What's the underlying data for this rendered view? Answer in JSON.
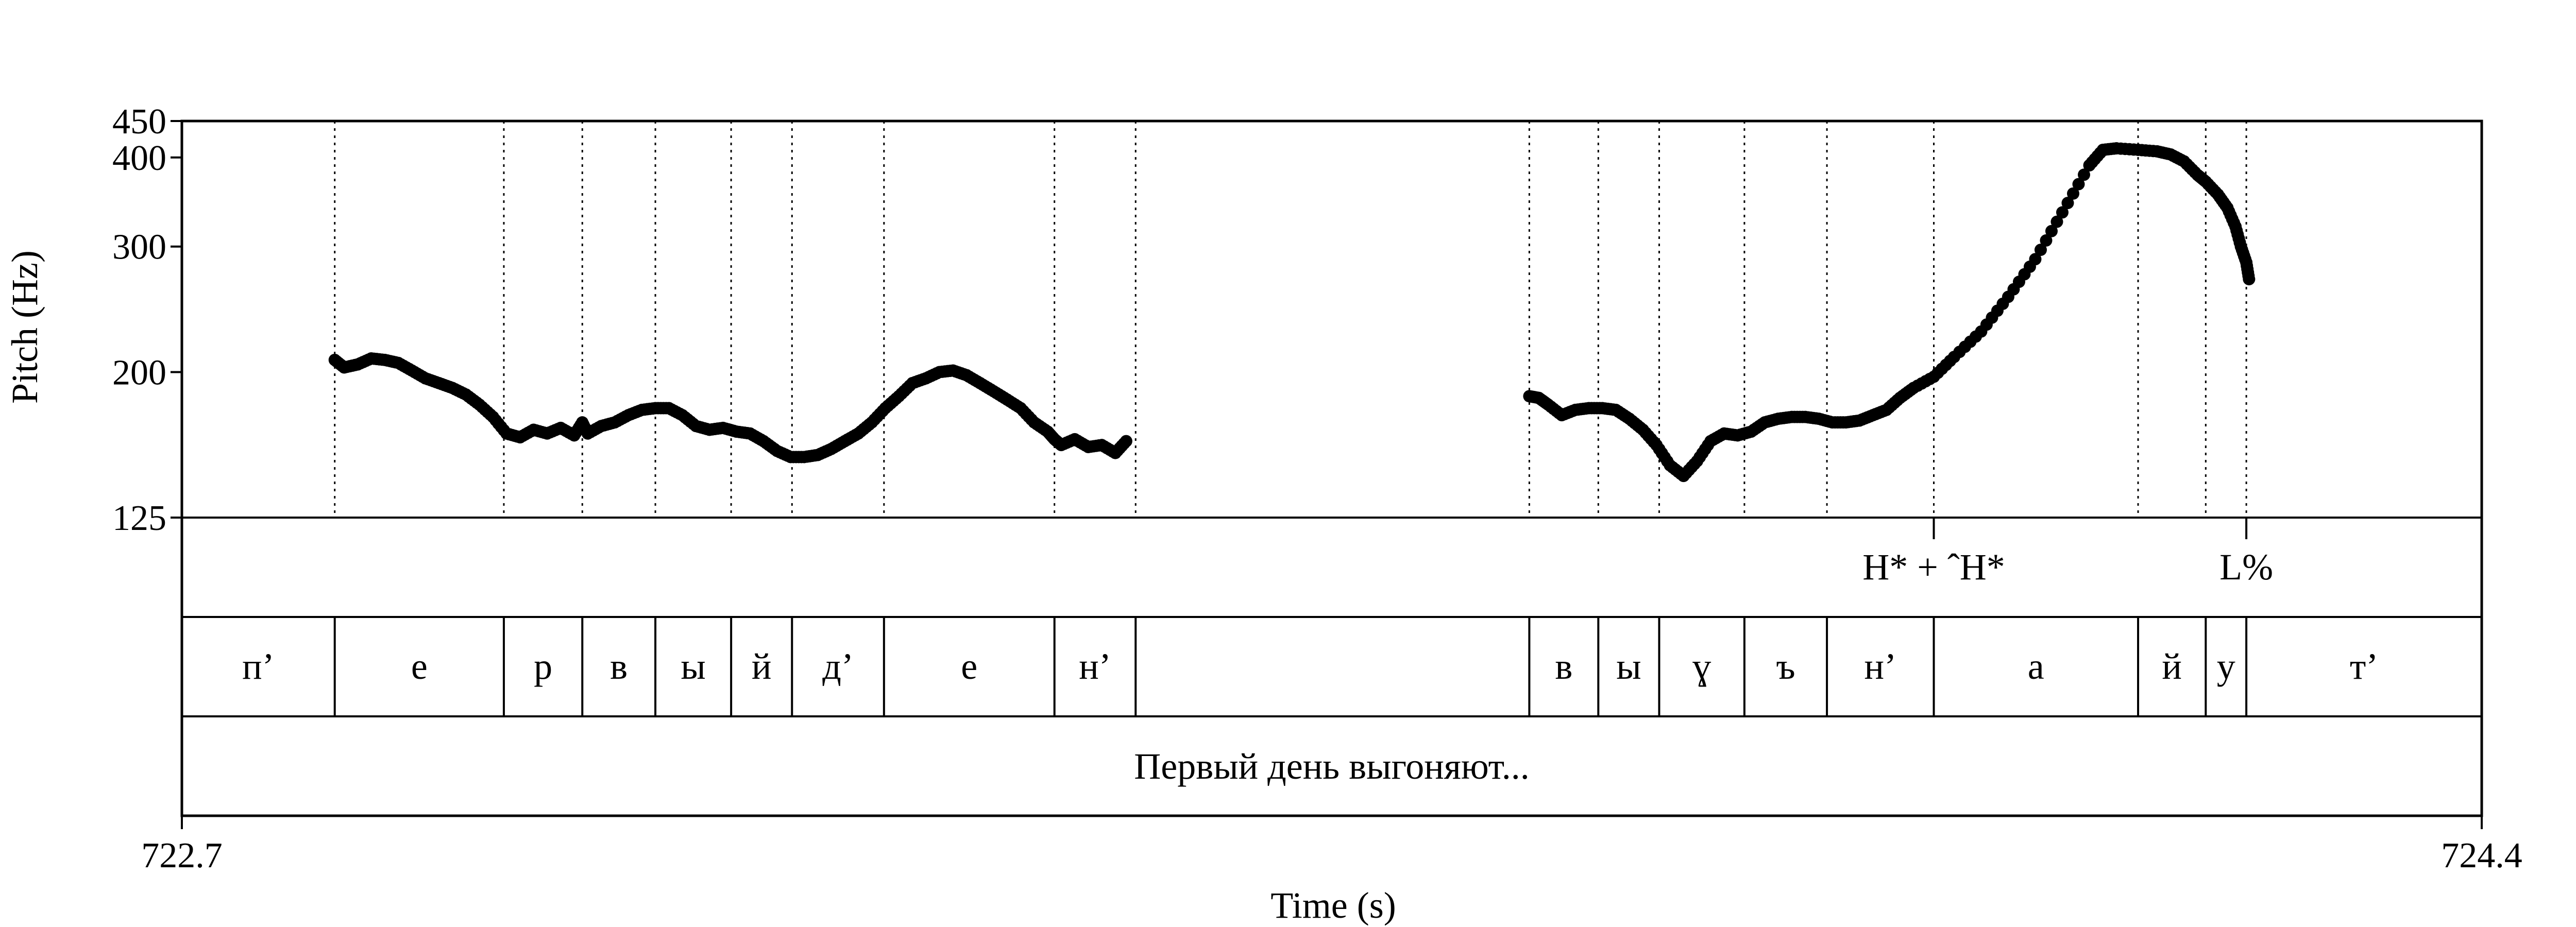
{
  "chart_data": {
    "type": "line",
    "xlabel": "Time (s)",
    "ylabel": "Pitch (Hz)",
    "xlim": [
      722.7,
      724.4
    ],
    "ylim": [
      125,
      450
    ],
    "y_scale": "log",
    "x_ticks": [
      "722.7",
      "724.4"
    ],
    "y_ticks": [
      {
        "value": 450,
        "label": "450"
      },
      {
        "value": 400,
        "label": "400"
      },
      {
        "value": 300,
        "label": "300"
      },
      {
        "value": 200,
        "label": "200"
      },
      {
        "value": 125,
        "label": "125"
      }
    ],
    "boundaries": [
      722.813,
      722.938,
      722.996,
      723.05,
      723.106,
      723.151,
      723.219,
      723.345,
      723.405,
      723.696,
      723.747,
      723.792,
      723.855,
      723.916,
      723.995,
      724.146,
      724.196,
      724.226
    ],
    "series": [
      {
        "points": [
          [
            722.813,
            208
          ],
          [
            722.82,
            203
          ],
          [
            722.83,
            205
          ],
          [
            722.84,
            209
          ],
          [
            722.85,
            208
          ],
          [
            722.86,
            206
          ],
          [
            722.87,
            201
          ],
          [
            722.88,
            196
          ],
          [
            722.89,
            193
          ],
          [
            722.9,
            190
          ],
          [
            722.91,
            186
          ],
          [
            722.92,
            180
          ],
          [
            722.93,
            173
          ],
          [
            722.94,
            164
          ],
          [
            722.95,
            162
          ],
          [
            722.96,
            166
          ],
          [
            722.97,
            164
          ],
          [
            722.98,
            167
          ],
          [
            722.99,
            163
          ],
          [
            722.996,
            170
          ],
          [
            723.0,
            164
          ],
          [
            723.01,
            168
          ],
          [
            723.02,
            170
          ],
          [
            723.03,
            174
          ],
          [
            723.04,
            177
          ],
          [
            723.05,
            178
          ],
          [
            723.06,
            178
          ],
          [
            723.07,
            174
          ],
          [
            723.08,
            168
          ],
          [
            723.09,
            166
          ],
          [
            723.1,
            167
          ],
          [
            723.11,
            165
          ],
          [
            723.12,
            164
          ],
          [
            723.13,
            160
          ],
          [
            723.14,
            155
          ],
          [
            723.15,
            152
          ],
          [
            723.16,
            152
          ],
          [
            723.17,
            153
          ],
          [
            723.18,
            156
          ],
          [
            723.19,
            160
          ],
          [
            723.2,
            164
          ],
          [
            723.21,
            170
          ],
          [
            723.22,
            178
          ],
          [
            723.23,
            185
          ],
          [
            723.24,
            193
          ],
          [
            723.25,
            196
          ],
          [
            723.26,
            200
          ],
          [
            723.27,
            201
          ],
          [
            723.28,
            198
          ],
          [
            723.29,
            193
          ],
          [
            723.3,
            188
          ],
          [
            723.31,
            183
          ],
          [
            723.32,
            178
          ],
          [
            723.33,
            170
          ],
          [
            723.34,
            165
          ],
          [
            723.345,
            161
          ],
          [
            723.35,
            158
          ],
          [
            723.36,
            161
          ],
          [
            723.37,
            157
          ],
          [
            723.38,
            158
          ],
          [
            723.39,
            154
          ],
          [
            723.398,
            160
          ]
        ]
      },
      {
        "points": [
          [
            723.696,
            185
          ],
          [
            723.703,
            184
          ],
          [
            723.71,
            180
          ],
          [
            723.72,
            174
          ],
          [
            723.73,
            177
          ],
          [
            723.74,
            178
          ],
          [
            723.75,
            178
          ],
          [
            723.76,
            177
          ],
          [
            723.77,
            172
          ],
          [
            723.78,
            166
          ],
          [
            723.79,
            158
          ],
          [
            723.8,
            148
          ],
          [
            723.81,
            143
          ],
          [
            723.82,
            150
          ],
          [
            723.83,
            160
          ],
          [
            723.84,
            164
          ],
          [
            723.85,
            163
          ],
          [
            723.86,
            165
          ],
          [
            723.87,
            170
          ],
          [
            723.88,
            172
          ],
          [
            723.89,
            173
          ],
          [
            723.9,
            173
          ],
          [
            723.91,
            172
          ],
          [
            723.92,
            170
          ],
          [
            723.93,
            170
          ],
          [
            723.94,
            171
          ],
          [
            723.95,
            174
          ],
          [
            723.96,
            177
          ],
          [
            723.97,
            184
          ],
          [
            723.98,
            190
          ],
          [
            723.995,
            197
          ],
          [
            724.01,
            210
          ],
          [
            724.03,
            228
          ],
          [
            724.05,
            255
          ],
          [
            724.07,
            288
          ],
          [
            724.09,
            335
          ],
          [
            724.11,
            390
          ],
          [
            724.12,
            410
          ],
          [
            724.13,
            412
          ],
          [
            724.146,
            410
          ],
          [
            724.16,
            408
          ],
          [
            724.17,
            404
          ],
          [
            724.18,
            395
          ],
          [
            724.19,
            378
          ],
          [
            724.196,
            370
          ],
          [
            724.205,
            355
          ],
          [
            724.212,
            340
          ],
          [
            724.218,
            320
          ],
          [
            724.222,
            300
          ],
          [
            724.226,
            285
          ],
          [
            724.228,
            270
          ]
        ]
      }
    ],
    "tiers": [
      {
        "name": "tone",
        "labels": [
          {
            "text": "H* + ˆH*",
            "time": 723.995
          },
          {
            "text": "L%",
            "time": 724.226
          }
        ]
      },
      {
        "name": "phones",
        "intervals": [
          {
            "start": 722.7,
            "end": 722.813,
            "text": "п’"
          },
          {
            "start": 722.813,
            "end": 722.938,
            "text": "е"
          },
          {
            "start": 722.938,
            "end": 722.996,
            "text": "р"
          },
          {
            "start": 722.996,
            "end": 723.05,
            "text": "в"
          },
          {
            "start": 723.05,
            "end": 723.106,
            "text": "ы"
          },
          {
            "start": 723.106,
            "end": 723.151,
            "text": "й"
          },
          {
            "start": 723.151,
            "end": 723.219,
            "text": "д’"
          },
          {
            "start": 723.219,
            "end": 723.345,
            "text": "е"
          },
          {
            "start": 723.345,
            "end": 723.405,
            "text": "н’"
          },
          {
            "start": 723.405,
            "end": 723.696,
            "text": ""
          },
          {
            "start": 723.696,
            "end": 723.747,
            "text": "в"
          },
          {
            "start": 723.747,
            "end": 723.792,
            "text": "ы"
          },
          {
            "start": 723.792,
            "end": 723.855,
            "text": "ɣ"
          },
          {
            "start": 723.855,
            "end": 723.916,
            "text": "ъ"
          },
          {
            "start": 723.916,
            "end": 723.995,
            "text": "н’"
          },
          {
            "start": 723.995,
            "end": 724.146,
            "text": "а"
          },
          {
            "start": 724.146,
            "end": 724.196,
            "text": "й"
          },
          {
            "start": 724.196,
            "end": 724.226,
            "text": "у"
          },
          {
            "start": 724.226,
            "end": 724.4,
            "text": "т’"
          }
        ]
      },
      {
        "name": "words",
        "intervals": [
          {
            "start": 722.7,
            "end": 724.4,
            "text": "Первый день выгоняют..."
          }
        ]
      }
    ]
  }
}
